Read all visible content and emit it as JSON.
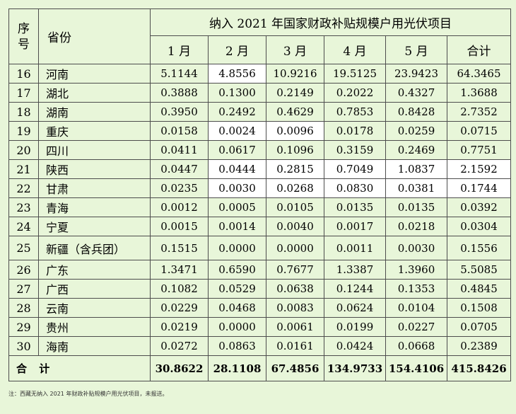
{
  "header": {
    "seq": "序号",
    "province": "省份",
    "title": "纳入 2021 年国家财政补贴规模户用光伏项目",
    "months": [
      "1 月",
      "2 月",
      "3 月",
      "4 月",
      "5 月"
    ],
    "total": "合计"
  },
  "rows": [
    {
      "seq": "16",
      "province": "河南",
      "values": [
        "5.1144",
        "4.8556",
        "10.9216",
        "19.5125",
        "23.9423",
        "64.3465"
      ]
    },
    {
      "seq": "17",
      "province": "湖北",
      "values": [
        "0.3888",
        "0.1300",
        "0.2149",
        "0.2022",
        "0.4327",
        "1.3688"
      ]
    },
    {
      "seq": "18",
      "province": "湖南",
      "values": [
        "0.3950",
        "0.2492",
        "0.4629",
        "0.7853",
        "0.8428",
        "2.7352"
      ]
    },
    {
      "seq": "19",
      "province": "重庆",
      "values": [
        "0.0158",
        "0.0024",
        "0.0096",
        "0.0178",
        "0.0259",
        "0.0715"
      ]
    },
    {
      "seq": "20",
      "province": "四川",
      "values": [
        "0.0411",
        "0.0617",
        "0.1096",
        "0.3159",
        "0.2469",
        "0.7751"
      ]
    },
    {
      "seq": "21",
      "province": "陕西",
      "values": [
        "0.0447",
        "0.0444",
        "0.2815",
        "0.7049",
        "1.0837",
        "2.1592"
      ]
    },
    {
      "seq": "22",
      "province": "甘肃",
      "values": [
        "0.0235",
        "0.0030",
        "0.0268",
        "0.0830",
        "0.0381",
        "0.1744"
      ]
    },
    {
      "seq": "23",
      "province": "青海",
      "values": [
        "0.0012",
        "0.0005",
        "0.0105",
        "0.0135",
        "0.0135",
        "0.0392"
      ]
    },
    {
      "seq": "24",
      "province": "宁夏",
      "values": [
        "0.0015",
        "0.0014",
        "0.0040",
        "0.0017",
        "0.0218",
        "0.0304"
      ]
    },
    {
      "seq": "25",
      "province": "新疆（含兵团）",
      "values": [
        "0.1515",
        "0.0000",
        "0.0000",
        "0.0011",
        "0.0030",
        "0.1556"
      ]
    },
    {
      "seq": "26",
      "province": "广东",
      "values": [
        "1.3471",
        "0.6590",
        "0.7677",
        "1.3387",
        "1.3960",
        "5.5085"
      ]
    },
    {
      "seq": "27",
      "province": "广西",
      "values": [
        "0.1082",
        "0.0529",
        "0.0638",
        "0.1244",
        "0.1353",
        "0.4845"
      ]
    },
    {
      "seq": "28",
      "province": "云南",
      "values": [
        "0.0229",
        "0.0468",
        "0.0083",
        "0.0624",
        "0.0104",
        "0.1508"
      ]
    },
    {
      "seq": "29",
      "province": "贵州",
      "values": [
        "0.0219",
        "0.0000",
        "0.0061",
        "0.0199",
        "0.0227",
        "0.0705"
      ]
    },
    {
      "seq": "30",
      "province": "海南",
      "values": [
        "0.0272",
        "0.0863",
        "0.0161",
        "0.0424",
        "0.0668",
        "0.2389"
      ]
    }
  ],
  "total_row": {
    "label": "合 计",
    "values": [
      "30.8622",
      "28.1108",
      "67.4856",
      "134.9733",
      "154.4106",
      "415.8426"
    ]
  },
  "note": "注：西藏无纳入 2021 年财政补贴规模户用光伏项目，未报送。",
  "colors": {
    "background": "#e8f6d9",
    "highlight_cell": "#ffffff",
    "border": "#4d4d4d"
  }
}
